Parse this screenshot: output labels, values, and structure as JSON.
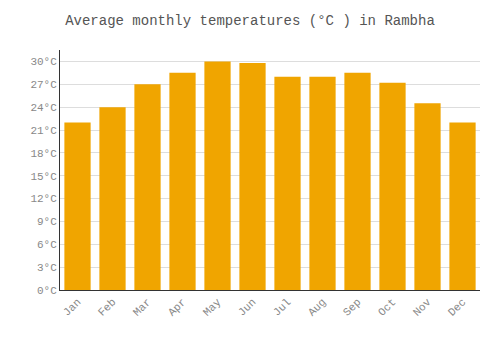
{
  "chart_data": {
    "type": "bar",
    "title": "Average monthly temperatures (°C ) in Rambha",
    "categories": [
      "Jan",
      "Feb",
      "Mar",
      "Apr",
      "May",
      "Jun",
      "Jul",
      "Aug",
      "Sep",
      "Oct",
      "Nov",
      "Dec"
    ],
    "values": [
      22,
      24,
      27,
      28.5,
      30,
      29.8,
      28,
      28,
      28.5,
      27.2,
      24.5,
      22
    ],
    "color": "#F0A500",
    "ylim": [
      0,
      31.5
    ],
    "yticks": [
      {
        "value": 0,
        "label": "0°C"
      },
      {
        "value": 3,
        "label": "3°C"
      },
      {
        "value": 6,
        "label": "6°C"
      },
      {
        "value": 9,
        "label": "9°C"
      },
      {
        "value": 12,
        "label": "12°C"
      },
      {
        "value": 15,
        "label": "15°C"
      },
      {
        "value": 18,
        "label": "18°C"
      },
      {
        "value": 21,
        "label": "21°C"
      },
      {
        "value": 24,
        "label": "24°C"
      },
      {
        "value": 27,
        "label": "27°C"
      },
      {
        "value": 30,
        "label": "30°C"
      }
    ],
    "grid": true
  }
}
